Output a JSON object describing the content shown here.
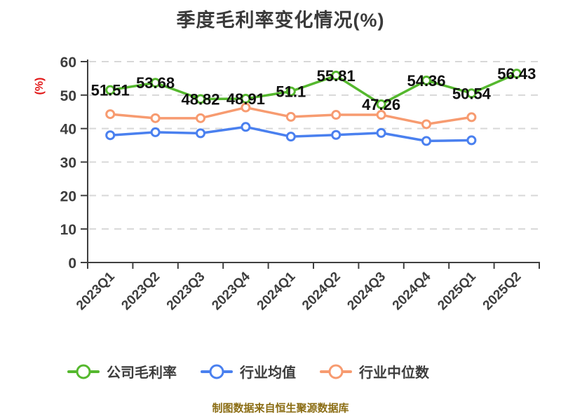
{
  "title": "季度毛利率变化情况(%)",
  "y_axis": {
    "unit": "(%)",
    "unit_color": "#e11414"
  },
  "footer": {
    "source": "制图数据来自恒生聚源数据库"
  },
  "chart_data": {
    "type": "line",
    "title": "季度毛利率变化情况(%)",
    "categories": [
      "2023Q1",
      "2023Q2",
      "2023Q3",
      "2023Q4",
      "2024Q1",
      "2024Q2",
      "2024Q3",
      "2024Q4",
      "2025Q1",
      "2025Q2"
    ],
    "series": [
      {
        "id": "company-gross-margin",
        "name": "公司毛利率",
        "color": "#55b82e",
        "values": [
          51.51,
          53.68,
          48.82,
          48.91,
          51.1,
          55.81,
          47.26,
          54.36,
          50.54,
          56.43
        ],
        "labels": [
          "51.51",
          "53.68",
          "48.82",
          "48.91",
          "51.1",
          "55.81",
          "47.26",
          "54.36",
          "50.54",
          "56.43"
        ]
      },
      {
        "id": "industry-average",
        "name": "行业均值",
        "color": "#4a80ef",
        "values": [
          38.0,
          38.9,
          38.6,
          40.5,
          37.6,
          38.1,
          38.7,
          36.3,
          36.5,
          null
        ],
        "labels": null
      },
      {
        "id": "industry-median",
        "name": "行业中位数",
        "color": "#f79b70",
        "values": [
          44.3,
          43.1,
          43.1,
          46.3,
          43.5,
          44.1,
          44.1,
          41.3,
          43.4,
          null
        ],
        "labels": null
      }
    ],
    "ylim": [
      0,
      60
    ],
    "y_ticks": [
      0,
      10,
      20,
      30,
      40,
      50,
      60
    ],
    "xlabel": "",
    "ylabel": "(%)",
    "grid": "horizontal-dashed",
    "legend_position": "bottom"
  }
}
